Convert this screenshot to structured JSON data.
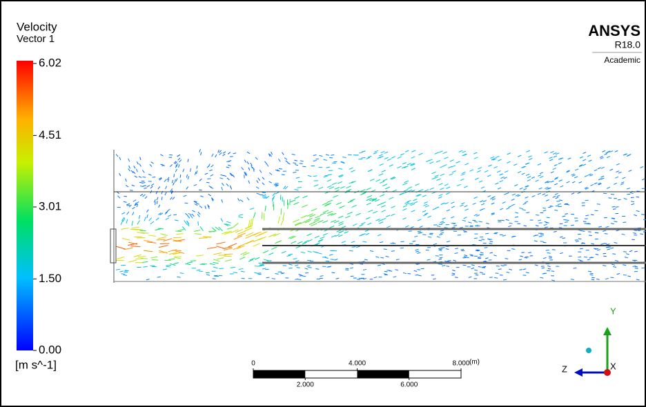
{
  "legend": {
    "title": [
      "Velocity",
      "Vector 1"
    ],
    "ticks": [
      6.02,
      4.51,
      3.01,
      {
        "value": 1.5,
        "label": "1.50"
      },
      {
        "value": 0,
        "label": "0.00"
      }
    ],
    "unit": "[m s^-1]"
  },
  "branding": {
    "product": "ANSYS",
    "version": "R18.0",
    "license": "Academic"
  },
  "scale_bar": {
    "ticks_top": [
      0,
      {
        "value": 4,
        "label": "4.000"
      },
      {
        "value": 8,
        "label": "8.000"
      }
    ],
    "ticks_bottom": [
      {
        "value": 2,
        "label": "2.000"
      },
      {
        "value": 6,
        "label": "6.000"
      }
    ],
    "unit": "(m)"
  },
  "axes": {
    "y": "Y",
    "z": "Z",
    "x": "X"
  }
}
